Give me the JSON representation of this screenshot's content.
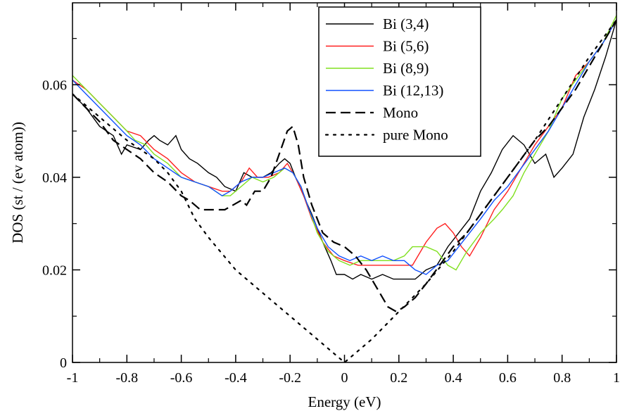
{
  "chart_data": {
    "type": "line",
    "title": "",
    "xlabel": "Energy (eV)",
    "ylabel": "DOS (st / (ev atom))",
    "xlim": [
      -1,
      1
    ],
    "ylim": [
      0,
      0.0777
    ],
    "x_ticks": [
      -1,
      -0.8,
      -0.6,
      -0.4,
      -0.2,
      0,
      0.2,
      0.4,
      0.6,
      0.8,
      1
    ],
    "x_tick_labels": [
      "-1",
      "-0.8",
      "-0.6",
      "-0.4",
      "-0.2",
      "0",
      "0.2",
      "0.4",
      "0.6",
      "0.8",
      "1"
    ],
    "y_ticks": [
      0,
      0.02,
      0.04,
      0.06
    ],
    "y_tick_labels": [
      "0",
      "0.02",
      "0.04",
      "0.06"
    ],
    "grid": false,
    "legend_position": "top-right",
    "series": [
      {
        "name": "Bi (3,4)",
        "color": "#000000",
        "style": "solid",
        "points": [
          [
            -1,
            0.058
          ],
          [
            -0.95,
            0.055
          ],
          [
            -0.9,
            0.051
          ],
          [
            -0.85,
            0.049
          ],
          [
            -0.82,
            0.045
          ],
          [
            -0.8,
            0.047
          ],
          [
            -0.75,
            0.046
          ],
          [
            -0.72,
            0.048
          ],
          [
            -0.7,
            0.049
          ],
          [
            -0.68,
            0.048
          ],
          [
            -0.65,
            0.047
          ],
          [
            -0.62,
            0.049
          ],
          [
            -0.6,
            0.046
          ],
          [
            -0.57,
            0.044
          ],
          [
            -0.54,
            0.043
          ],
          [
            -0.5,
            0.041
          ],
          [
            -0.47,
            0.04
          ],
          [
            -0.44,
            0.038
          ],
          [
            -0.4,
            0.037
          ],
          [
            -0.37,
            0.041
          ],
          [
            -0.34,
            0.04
          ],
          [
            -0.3,
            0.04
          ],
          [
            -0.27,
            0.041
          ],
          [
            -0.24,
            0.043
          ],
          [
            -0.22,
            0.044
          ],
          [
            -0.2,
            0.043
          ],
          [
            -0.18,
            0.04
          ],
          [
            -0.15,
            0.036
          ],
          [
            -0.12,
            0.032
          ],
          [
            -0.08,
            0.026
          ],
          [
            -0.05,
            0.022
          ],
          [
            -0.03,
            0.019
          ],
          [
            0,
            0.019
          ],
          [
            0.03,
            0.018
          ],
          [
            0.06,
            0.019
          ],
          [
            0.1,
            0.018
          ],
          [
            0.14,
            0.019
          ],
          [
            0.18,
            0.018
          ],
          [
            0.22,
            0.018
          ],
          [
            0.26,
            0.018
          ],
          [
            0.3,
            0.02
          ],
          [
            0.34,
            0.021
          ],
          [
            0.38,
            0.025
          ],
          [
            0.42,
            0.028
          ],
          [
            0.46,
            0.031
          ],
          [
            0.5,
            0.037
          ],
          [
            0.54,
            0.041
          ],
          [
            0.58,
            0.046
          ],
          [
            0.62,
            0.049
          ],
          [
            0.66,
            0.047
          ],
          [
            0.7,
            0.043
          ],
          [
            0.74,
            0.045
          ],
          [
            0.77,
            0.04
          ],
          [
            0.8,
            0.042
          ],
          [
            0.84,
            0.045
          ],
          [
            0.88,
            0.053
          ],
          [
            0.92,
            0.059
          ],
          [
            0.96,
            0.066
          ],
          [
            1,
            0.074
          ]
        ]
      },
      {
        "name": "Bi (5,6)",
        "color": "#ff2020",
        "style": "solid",
        "points": [
          [
            -1,
            0.061
          ],
          [
            -0.95,
            0.059
          ],
          [
            -0.9,
            0.056
          ],
          [
            -0.85,
            0.053
          ],
          [
            -0.8,
            0.05
          ],
          [
            -0.75,
            0.049
          ],
          [
            -0.7,
            0.046
          ],
          [
            -0.65,
            0.044
          ],
          [
            -0.6,
            0.041
          ],
          [
            -0.55,
            0.039
          ],
          [
            -0.5,
            0.038
          ],
          [
            -0.45,
            0.037
          ],
          [
            -0.42,
            0.037
          ],
          [
            -0.38,
            0.039
          ],
          [
            -0.35,
            0.042
          ],
          [
            -0.32,
            0.04
          ],
          [
            -0.28,
            0.04
          ],
          [
            -0.24,
            0.041
          ],
          [
            -0.21,
            0.043
          ],
          [
            -0.18,
            0.04
          ],
          [
            -0.15,
            0.036
          ],
          [
            -0.12,
            0.031
          ],
          [
            -0.08,
            0.026
          ],
          [
            -0.04,
            0.023
          ],
          [
            0,
            0.022
          ],
          [
            0.05,
            0.021
          ],
          [
            0.1,
            0.021
          ],
          [
            0.15,
            0.021
          ],
          [
            0.2,
            0.021
          ],
          [
            0.25,
            0.021
          ],
          [
            0.3,
            0.026
          ],
          [
            0.34,
            0.029
          ],
          [
            0.37,
            0.03
          ],
          [
            0.4,
            0.028
          ],
          [
            0.43,
            0.025
          ],
          [
            0.46,
            0.023
          ],
          [
            0.5,
            0.027
          ],
          [
            0.55,
            0.033
          ],
          [
            0.6,
            0.037
          ],
          [
            0.65,
            0.042
          ],
          [
            0.7,
            0.047
          ],
          [
            0.75,
            0.051
          ],
          [
            0.8,
            0.055
          ],
          [
            0.85,
            0.062
          ],
          [
            0.9,
            0.065
          ],
          [
            0.95,
            0.069
          ],
          [
            1,
            0.074
          ]
        ]
      },
      {
        "name": "Bi (8,9)",
        "color": "#80e020",
        "style": "solid",
        "points": [
          [
            -1,
            0.062
          ],
          [
            -0.95,
            0.059
          ],
          [
            -0.9,
            0.056
          ],
          [
            -0.85,
            0.053
          ],
          [
            -0.8,
            0.05
          ],
          [
            -0.77,
            0.048
          ],
          [
            -0.73,
            0.047
          ],
          [
            -0.7,
            0.045
          ],
          [
            -0.65,
            0.043
          ],
          [
            -0.6,
            0.04
          ],
          [
            -0.55,
            0.039
          ],
          [
            -0.5,
            0.038
          ],
          [
            -0.45,
            0.036
          ],
          [
            -0.42,
            0.036
          ],
          [
            -0.38,
            0.038
          ],
          [
            -0.34,
            0.04
          ],
          [
            -0.3,
            0.039
          ],
          [
            -0.26,
            0.04
          ],
          [
            -0.22,
            0.042
          ],
          [
            -0.19,
            0.041
          ],
          [
            -0.16,
            0.038
          ],
          [
            -0.13,
            0.033
          ],
          [
            -0.1,
            0.028
          ],
          [
            -0.06,
            0.024
          ],
          [
            -0.02,
            0.022
          ],
          [
            0.02,
            0.021
          ],
          [
            0.06,
            0.022
          ],
          [
            0.1,
            0.022
          ],
          [
            0.14,
            0.022
          ],
          [
            0.18,
            0.022
          ],
          [
            0.22,
            0.023
          ],
          [
            0.25,
            0.025
          ],
          [
            0.3,
            0.025
          ],
          [
            0.34,
            0.024
          ],
          [
            0.38,
            0.021
          ],
          [
            0.41,
            0.02
          ],
          [
            0.45,
            0.024
          ],
          [
            0.5,
            0.028
          ],
          [
            0.55,
            0.031
          ],
          [
            0.58,
            0.033
          ],
          [
            0.62,
            0.036
          ],
          [
            0.66,
            0.041
          ],
          [
            0.7,
            0.045
          ],
          [
            0.75,
            0.05
          ],
          [
            0.8,
            0.057
          ],
          [
            0.85,
            0.061
          ],
          [
            0.9,
            0.065
          ],
          [
            0.95,
            0.069
          ],
          [
            1,
            0.075
          ]
        ]
      },
      {
        "name": "Bi (12,13)",
        "color": "#1050ff",
        "style": "solid",
        "points": [
          [
            -1,
            0.061
          ],
          [
            -0.95,
            0.058
          ],
          [
            -0.9,
            0.055
          ],
          [
            -0.85,
            0.052
          ],
          [
            -0.8,
            0.049
          ],
          [
            -0.75,
            0.047
          ],
          [
            -0.7,
            0.044
          ],
          [
            -0.65,
            0.042
          ],
          [
            -0.6,
            0.04
          ],
          [
            -0.55,
            0.039
          ],
          [
            -0.5,
            0.038
          ],
          [
            -0.45,
            0.036
          ],
          [
            -0.42,
            0.037
          ],
          [
            -0.38,
            0.039
          ],
          [
            -0.34,
            0.04
          ],
          [
            -0.3,
            0.04
          ],
          [
            -0.26,
            0.041
          ],
          [
            -0.22,
            0.042
          ],
          [
            -0.19,
            0.041
          ],
          [
            -0.16,
            0.038
          ],
          [
            -0.13,
            0.033
          ],
          [
            -0.1,
            0.029
          ],
          [
            -0.06,
            0.025
          ],
          [
            -0.02,
            0.023
          ],
          [
            0.02,
            0.022
          ],
          [
            0.06,
            0.023
          ],
          [
            0.1,
            0.022
          ],
          [
            0.14,
            0.023
          ],
          [
            0.18,
            0.022
          ],
          [
            0.22,
            0.022
          ],
          [
            0.26,
            0.02
          ],
          [
            0.3,
            0.019
          ],
          [
            0.34,
            0.021
          ],
          [
            0.38,
            0.022
          ],
          [
            0.42,
            0.025
          ],
          [
            0.46,
            0.028
          ],
          [
            0.5,
            0.031
          ],
          [
            0.55,
            0.035
          ],
          [
            0.6,
            0.038
          ],
          [
            0.65,
            0.042
          ],
          [
            0.7,
            0.046
          ],
          [
            0.75,
            0.05
          ],
          [
            0.8,
            0.055
          ],
          [
            0.85,
            0.06
          ],
          [
            0.9,
            0.065
          ],
          [
            0.95,
            0.069
          ],
          [
            1,
            0.074
          ]
        ]
      },
      {
        "name": "Mono",
        "color": "#000000",
        "style": "dashed",
        "points": [
          [
            -1,
            0.058
          ],
          [
            -0.95,
            0.055
          ],
          [
            -0.9,
            0.052
          ],
          [
            -0.85,
            0.048
          ],
          [
            -0.8,
            0.046
          ],
          [
            -0.75,
            0.044
          ],
          [
            -0.7,
            0.041
          ],
          [
            -0.65,
            0.039
          ],
          [
            -0.6,
            0.036
          ],
          [
            -0.57,
            0.035
          ],
          [
            -0.53,
            0.033
          ],
          [
            -0.49,
            0.033
          ],
          [
            -0.44,
            0.033
          ],
          [
            -0.41,
            0.034
          ],
          [
            -0.38,
            0.035
          ],
          [
            -0.36,
            0.034
          ],
          [
            -0.33,
            0.037
          ],
          [
            -0.3,
            0.037
          ],
          [
            -0.27,
            0.04
          ],
          [
            -0.24,
            0.045
          ],
          [
            -0.21,
            0.05
          ],
          [
            -0.19,
            0.051
          ],
          [
            -0.17,
            0.047
          ],
          [
            -0.15,
            0.04
          ],
          [
            -0.12,
            0.034
          ],
          [
            -0.08,
            0.028
          ],
          [
            -0.04,
            0.026
          ],
          [
            0,
            0.025
          ],
          [
            0.04,
            0.023
          ],
          [
            0.08,
            0.02
          ],
          [
            0.12,
            0.016
          ],
          [
            0.16,
            0.012
          ],
          [
            0.19,
            0.011
          ],
          [
            0.22,
            0.012
          ],
          [
            0.26,
            0.014
          ],
          [
            0.3,
            0.017
          ],
          [
            0.35,
            0.021
          ],
          [
            0.4,
            0.025
          ],
          [
            0.45,
            0.028
          ],
          [
            0.5,
            0.032
          ],
          [
            0.55,
            0.036
          ],
          [
            0.6,
            0.04
          ],
          [
            0.65,
            0.044
          ],
          [
            0.7,
            0.048
          ],
          [
            0.75,
            0.051
          ],
          [
            0.8,
            0.055
          ],
          [
            0.85,
            0.059
          ],
          [
            0.9,
            0.064
          ],
          [
            0.95,
            0.069
          ],
          [
            1,
            0.074
          ]
        ]
      },
      {
        "name": "pure Mono",
        "color": "#000000",
        "style": "dotted",
        "points": [
          [
            -1,
            0.058
          ],
          [
            -0.9,
            0.053
          ],
          [
            -0.8,
            0.048
          ],
          [
            -0.7,
            0.044
          ],
          [
            -0.65,
            0.041
          ],
          [
            -0.6,
            0.037
          ],
          [
            -0.55,
            0.031
          ],
          [
            -0.5,
            0.027
          ],
          [
            -0.4,
            0.02
          ],
          [
            -0.3,
            0.015
          ],
          [
            -0.2,
            0.01
          ],
          [
            -0.1,
            0.005
          ],
          [
            0,
            0.0
          ],
          [
            0.1,
            0.005
          ],
          [
            0.2,
            0.011
          ],
          [
            0.3,
            0.017
          ],
          [
            0.4,
            0.024
          ],
          [
            0.5,
            0.032
          ],
          [
            0.6,
            0.04
          ],
          [
            0.7,
            0.048
          ],
          [
            0.8,
            0.057
          ],
          [
            0.9,
            0.066
          ],
          [
            1,
            0.074
          ]
        ]
      }
    ]
  }
}
